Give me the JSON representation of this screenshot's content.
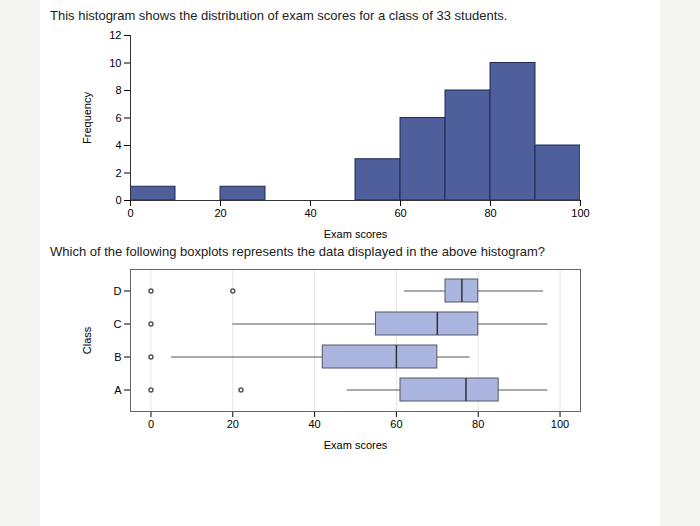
{
  "chart_data": [
    {
      "type": "histogram",
      "title": "This histogram shows the distribution of exam scores for a class of 33 students.",
      "xlabel": "Exam scores",
      "ylabel": "Frequency",
      "bins": [
        0,
        10,
        20,
        30,
        40,
        50,
        60,
        70,
        80,
        90,
        100
      ],
      "counts": [
        1,
        0,
        1,
        0,
        0,
        3,
        6,
        8,
        10,
        4
      ],
      "color": "#4f5f9c",
      "xlim": [
        0,
        100
      ],
      "xticks": [
        0,
        20,
        40,
        60,
        80,
        100
      ],
      "ylim": [
        0,
        12
      ],
      "yticks": [
        0,
        2,
        4,
        6,
        8,
        10,
        12
      ]
    },
    {
      "type": "box",
      "title": "Which of the following boxplots represents the data displayed in the above histogram?",
      "xlabel": "Exam scores",
      "ylabel": "Class",
      "categories": [
        "A",
        "B",
        "C",
        "D"
      ],
      "min": [
        48,
        5,
        20,
        62
      ],
      "q1": [
        61,
        42,
        55,
        72
      ],
      "median": [
        77,
        60,
        70,
        76
      ],
      "q3": [
        85,
        70,
        80,
        80
      ],
      "max": [
        97,
        78,
        97,
        96
      ],
      "outliers": [
        [
          0,
          22
        ],
        [
          0
        ],
        [
          0
        ],
        [
          0,
          20
        ]
      ],
      "color": "#aab6df",
      "xlim": [
        -5,
        105
      ],
      "xticks": [
        0,
        20,
        40,
        60,
        80,
        100
      ],
      "grid": true
    }
  ]
}
